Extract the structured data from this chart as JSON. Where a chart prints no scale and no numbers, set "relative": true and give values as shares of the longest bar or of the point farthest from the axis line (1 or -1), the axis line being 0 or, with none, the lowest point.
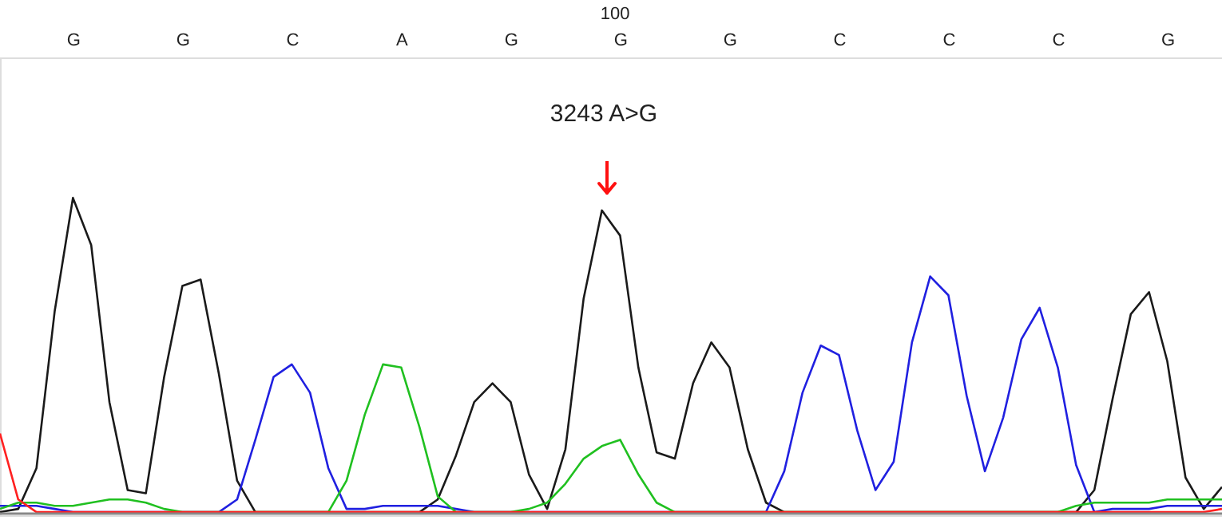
{
  "chart_data": {
    "type": "line",
    "relative": true,
    "grid": false,
    "marker": "none",
    "line_style": "solid",
    "categories": [
      null,
      null,
      null,
      null,
      "G",
      null,
      null,
      null,
      null,
      null,
      "G",
      null,
      null,
      null,
      null,
      null,
      "C",
      null,
      null,
      null,
      null,
      null,
      "A",
      null,
      null,
      null,
      null,
      null,
      "G",
      null,
      null,
      null,
      null,
      null,
      "G",
      null,
      null,
      null,
      null,
      null,
      "G",
      null,
      null,
      null,
      null,
      null,
      "C",
      null,
      null,
      null,
      null,
      null,
      "C",
      null,
      null,
      null,
      null,
      null,
      "C",
      null,
      null,
      null,
      null,
      null,
      "G",
      null,
      null,
      null
    ],
    "annotations": [
      "100",
      "3243 A>G"
    ],
    "series": [
      {
        "color": "#1a1a1a",
        "values": [
          0,
          0.01,
          0.14,
          0.64,
          1.0,
          0.85,
          0.35,
          0.07,
          0.06,
          0.43,
          0.72,
          0.74,
          0.44,
          0.1,
          0,
          0,
          0,
          0,
          0,
          0,
          0,
          0,
          0,
          0,
          0.04,
          0.18,
          0.35,
          0.41,
          0.35,
          0.12,
          0.01,
          0.2,
          0.68,
          0.96,
          0.88,
          0.46,
          0.19,
          0.17,
          0.41,
          0.54,
          0.46,
          0.2,
          0.03,
          0,
          0,
          0,
          0,
          0,
          0,
          0,
          0,
          0,
          0,
          0,
          0,
          0,
          0,
          0,
          0,
          0,
          0.07,
          0.36,
          0.63,
          0.7,
          0.48,
          0.11,
          0.01,
          0.08
        ]
      },
      {
        "color": "#2020e0",
        "values": [
          0.02,
          0.02,
          0.02,
          0.01,
          0,
          0,
          0,
          0,
          0,
          0,
          0,
          0,
          0,
          0.04,
          0.23,
          0.43,
          0.47,
          0.38,
          0.14,
          0.01,
          0.01,
          0.02,
          0.02,
          0.02,
          0.02,
          0.01,
          0,
          0,
          0,
          0,
          0,
          0,
          0,
          0,
          0,
          0,
          0,
          0,
          0,
          0,
          0,
          0,
          0,
          0.13,
          0.38,
          0.53,
          0.5,
          0.26,
          0.07,
          0.16,
          0.54,
          0.75,
          0.69,
          0.37,
          0.13,
          0.3,
          0.55,
          0.65,
          0.46,
          0.15,
          0,
          0.01,
          0.01,
          0.01,
          0.02,
          0.02,
          0.02,
          0.02
        ]
      },
      {
        "color": "#20c020",
        "values": [
          0.01,
          0.03,
          0.03,
          0.02,
          0.02,
          0.03,
          0.04,
          0.04,
          0.03,
          0.01,
          0,
          0,
          0,
          0,
          0,
          0,
          0,
          0,
          0,
          0.1,
          0.31,
          0.47,
          0.46,
          0.27,
          0.05,
          0,
          0,
          0,
          0,
          0.01,
          0.03,
          0.09,
          0.17,
          0.21,
          0.23,
          0.12,
          0.03,
          0,
          0,
          0,
          0,
          0,
          0,
          0,
          0,
          0,
          0,
          0,
          0,
          0,
          0,
          0,
          0,
          0,
          0,
          0,
          0,
          0,
          0,
          0.02,
          0.03,
          0.03,
          0.03,
          0.03,
          0.04,
          0.04,
          0.04,
          0.04
        ]
      },
      {
        "color": "#ff2020",
        "values": [
          0.25,
          0.04,
          0,
          0,
          0,
          0,
          0,
          0,
          0,
          0,
          0,
          0,
          0,
          0,
          0,
          0,
          0,
          0,
          0,
          0,
          0,
          0,
          0,
          0,
          0,
          0,
          0,
          0,
          0,
          0,
          0,
          0,
          0,
          0,
          0,
          0,
          0,
          0,
          0,
          0,
          0,
          0,
          0,
          0,
          0,
          0,
          0,
          0,
          0,
          0,
          0,
          0,
          0,
          0,
          0,
          0,
          0,
          0,
          0,
          0,
          0,
          0,
          0,
          0,
          0,
          0,
          0,
          0.01
        ]
      }
    ]
  }
}
